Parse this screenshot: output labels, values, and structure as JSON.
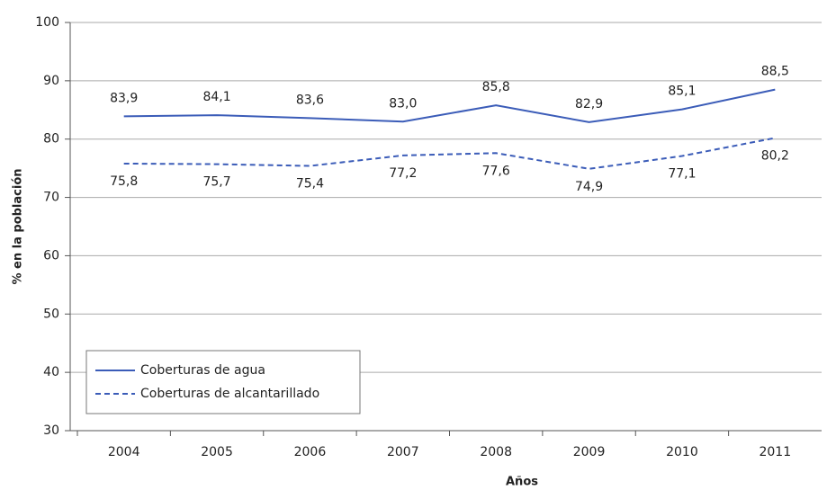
{
  "chart_data": {
    "type": "line",
    "xlabel": "Años",
    "ylabel": "% en la población",
    "categories": [
      "2004",
      "2005",
      "2006",
      "2007",
      "2008",
      "2009",
      "2010",
      "2011"
    ],
    "series": [
      {
        "name": "Coberturas de agua",
        "color": "#3b5cb8",
        "line_style": "solid",
        "values": [
          83.9,
          84.1,
          83.6,
          83.0,
          85.8,
          82.9,
          85.1,
          88.5
        ],
        "value_labels": [
          "83,9",
          "84,1",
          "83,6",
          "83,0",
          "85,8",
          "82,9",
          "85,1",
          "88,5"
        ],
        "label_position": "above"
      },
      {
        "name": "Coberturas de alcantarillado",
        "color": "#3b5cb8",
        "line_style": "dashed",
        "values": [
          75.8,
          75.7,
          75.4,
          77.2,
          77.6,
          74.9,
          77.1,
          80.2
        ],
        "value_labels": [
          "75,8",
          "75,7",
          "75,4",
          "77,2",
          "77,6",
          "74,9",
          "77,1",
          "80,2"
        ],
        "label_position": "below"
      }
    ],
    "ylim": [
      30,
      100
    ],
    "yticks": [
      30,
      40,
      50,
      60,
      70,
      80,
      90,
      100
    ],
    "grid": true,
    "legend": "lower left"
  }
}
